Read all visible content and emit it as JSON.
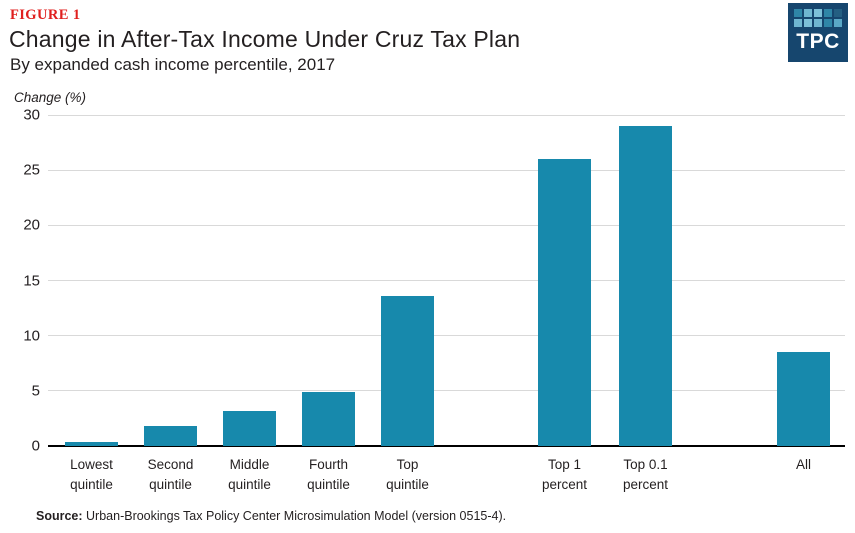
{
  "header": {
    "figure_label": "FIGURE 1",
    "title": "Change in After-Tax Income Under Cruz Tax Plan",
    "subtitle": "By expanded cash income percentile, 2017"
  },
  "logo": {
    "text": "TPC",
    "background": "#16466e",
    "grid_colors": [
      [
        "#2f86a7",
        "#6fb6d0",
        "#7cc0d8",
        "#2f86a7",
        "#245f82"
      ],
      [
        "#6fb6d0",
        "#7cc0d8",
        "#6fb6d0",
        "#2f86a7",
        "#5aa8c6"
      ]
    ]
  },
  "chart_data": {
    "type": "bar",
    "title": "Change in After-Tax Income Under Cruz Tax Plan",
    "subtitle": "By expanded cash income percentile, 2017",
    "xlabel": "",
    "ylabel": "Change (%)",
    "categories": [
      "Lowest quintile",
      "Second quintile",
      "Middle quintile",
      "Fourth quintile",
      "Top quintile",
      "Top 1 percent",
      "Top 0.1 percent",
      "All"
    ],
    "category_lines": [
      [
        "Lowest",
        "quintile"
      ],
      [
        "Second",
        "quintile"
      ],
      [
        "Middle",
        "quintile"
      ],
      [
        "Fourth",
        "quintile"
      ],
      [
        "Top",
        "quintile"
      ],
      [
        "Top 1",
        "percent"
      ],
      [
        "Top 0.1",
        "percent"
      ],
      [
        "All"
      ]
    ],
    "values": [
      0.4,
      1.8,
      3.2,
      4.9,
      13.6,
      26.0,
      29.0,
      8.5
    ],
    "ylim": [
      0,
      30
    ],
    "yticks": [
      0,
      5,
      10,
      15,
      20,
      25,
      30
    ],
    "grid": "horizontal gridlines only",
    "legend": "none",
    "group_gaps_after": [
      "Top quintile",
      "Top 0.1 percent"
    ],
    "bar_color": "#1789ac",
    "gridline_color": "#d9d9d9",
    "axis_color": "#000000"
  },
  "source": {
    "label": "Source:",
    "text": " Urban-Brookings Tax Policy Center Microsimulation Model (version 0515-4)."
  }
}
